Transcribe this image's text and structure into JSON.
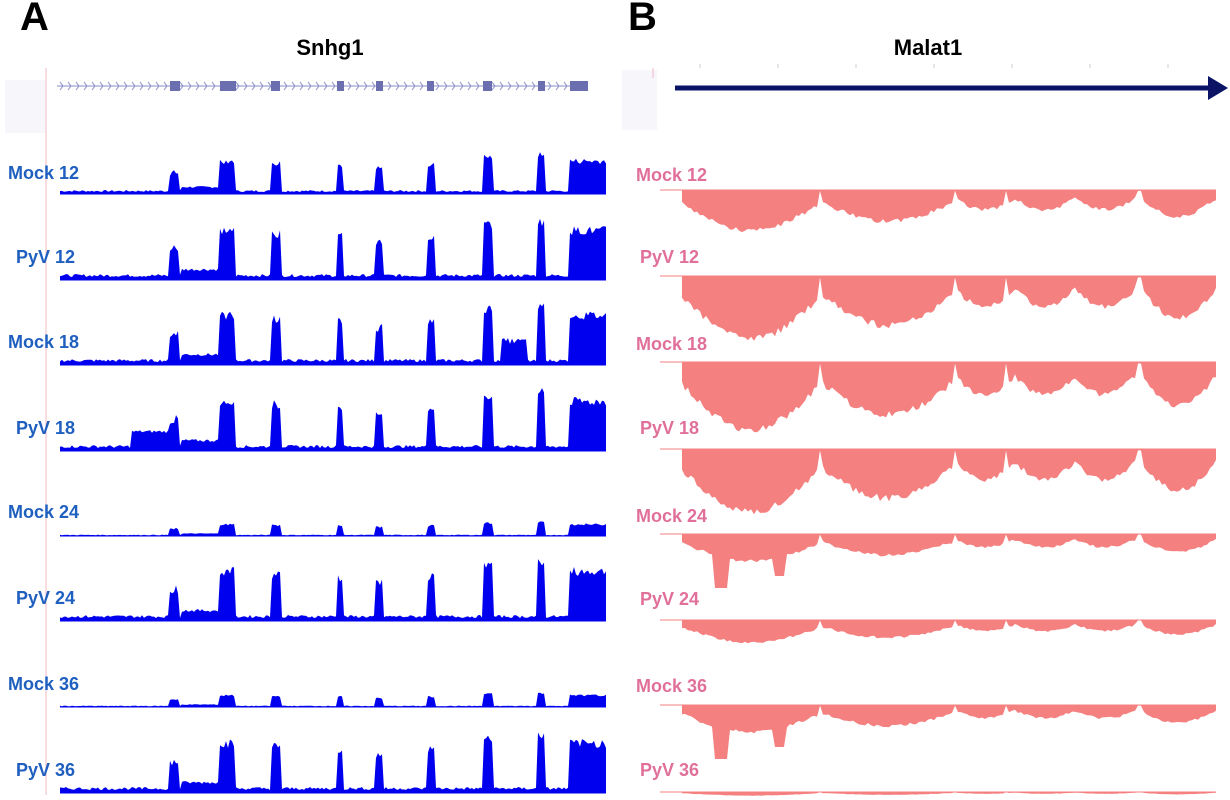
{
  "panels": [
    {
      "letter": "A",
      "gene": "Snhg1",
      "color": "#0000ee",
      "label_color": "#1f5fbf",
      "labels": [
        "Mock 12",
        "PyV 12",
        "Mock 18",
        "PyV 18",
        "Mock 24",
        "PyV 24",
        "Mock 36",
        "PyV 36"
      ]
    },
    {
      "letter": "B",
      "gene": "Malat1",
      "color": "#f48080",
      "label_color": "#e0709a",
      "arrow_color": "#0b1464",
      "labels": [
        "Mock 12",
        "PyV 12",
        "Mock 18",
        "PyV 18",
        "Mock 24",
        "PyV 24",
        "Mock 36",
        "PyV 36"
      ]
    }
  ]
}
